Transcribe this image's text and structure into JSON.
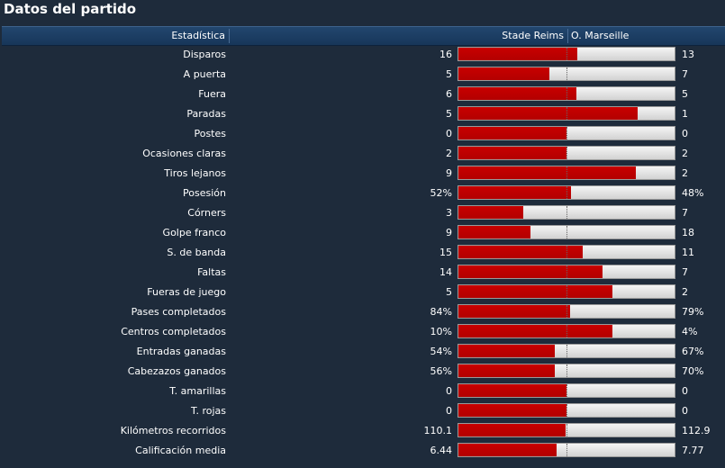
{
  "title": "Datos del partido",
  "header": {
    "stat": "Estadística",
    "home": "Stade Reims",
    "away": "O. Marseille"
  },
  "colors": {
    "home_bar": "#b30000",
    "away_bar": "#e0e0e0",
    "background": "#1e2b3b"
  },
  "stats": [
    {
      "label": "Disparos",
      "home": "16",
      "away": "13",
      "home_share": 0.55
    },
    {
      "label": "A puerta",
      "home": "5",
      "away": "7",
      "home_share": 0.42
    },
    {
      "label": "Fuera",
      "home": "6",
      "away": "5",
      "home_share": 0.545
    },
    {
      "label": "Paradas",
      "home": "5",
      "away": "1",
      "home_share": 0.83
    },
    {
      "label": "Postes",
      "home": "0",
      "away": "0",
      "home_share": 0.5
    },
    {
      "label": "Ocasiones claras",
      "home": "2",
      "away": "2",
      "home_share": 0.5
    },
    {
      "label": "Tiros lejanos",
      "home": "9",
      "away": "2",
      "home_share": 0.82
    },
    {
      "label": "Posesión",
      "home": "52%",
      "away": "48%",
      "home_share": 0.52
    },
    {
      "label": "Córners",
      "home": "3",
      "away": "7",
      "home_share": 0.3
    },
    {
      "label": "Golpe franco",
      "home": "9",
      "away": "18",
      "home_share": 0.333
    },
    {
      "label": "S. de banda",
      "home": "15",
      "away": "11",
      "home_share": 0.577
    },
    {
      "label": "Faltas",
      "home": "14",
      "away": "7",
      "home_share": 0.667
    },
    {
      "label": "Fueras de juego",
      "home": "5",
      "away": "2",
      "home_share": 0.714
    },
    {
      "label": "Pases completados",
      "home": "84%",
      "away": "79%",
      "home_share": 0.515
    },
    {
      "label": "Centros completados",
      "home": "10%",
      "away": "4%",
      "home_share": 0.714
    },
    {
      "label": "Entradas ganadas",
      "home": "54%",
      "away": "67%",
      "home_share": 0.446
    },
    {
      "label": "Cabezazos ganados",
      "home": "56%",
      "away": "70%",
      "home_share": 0.444
    },
    {
      "label": "T. amarillas",
      "home": "0",
      "away": "0",
      "home_share": 0.5
    },
    {
      "label": "T. rojas",
      "home": "0",
      "away": "0",
      "home_share": 0.5
    },
    {
      "label": "Kilómetros recorridos",
      "home": "110.1",
      "away": "112.9",
      "home_share": 0.494
    },
    {
      "label": "Calificación media",
      "home": "6.44",
      "away": "7.77",
      "home_share": 0.453
    }
  ]
}
